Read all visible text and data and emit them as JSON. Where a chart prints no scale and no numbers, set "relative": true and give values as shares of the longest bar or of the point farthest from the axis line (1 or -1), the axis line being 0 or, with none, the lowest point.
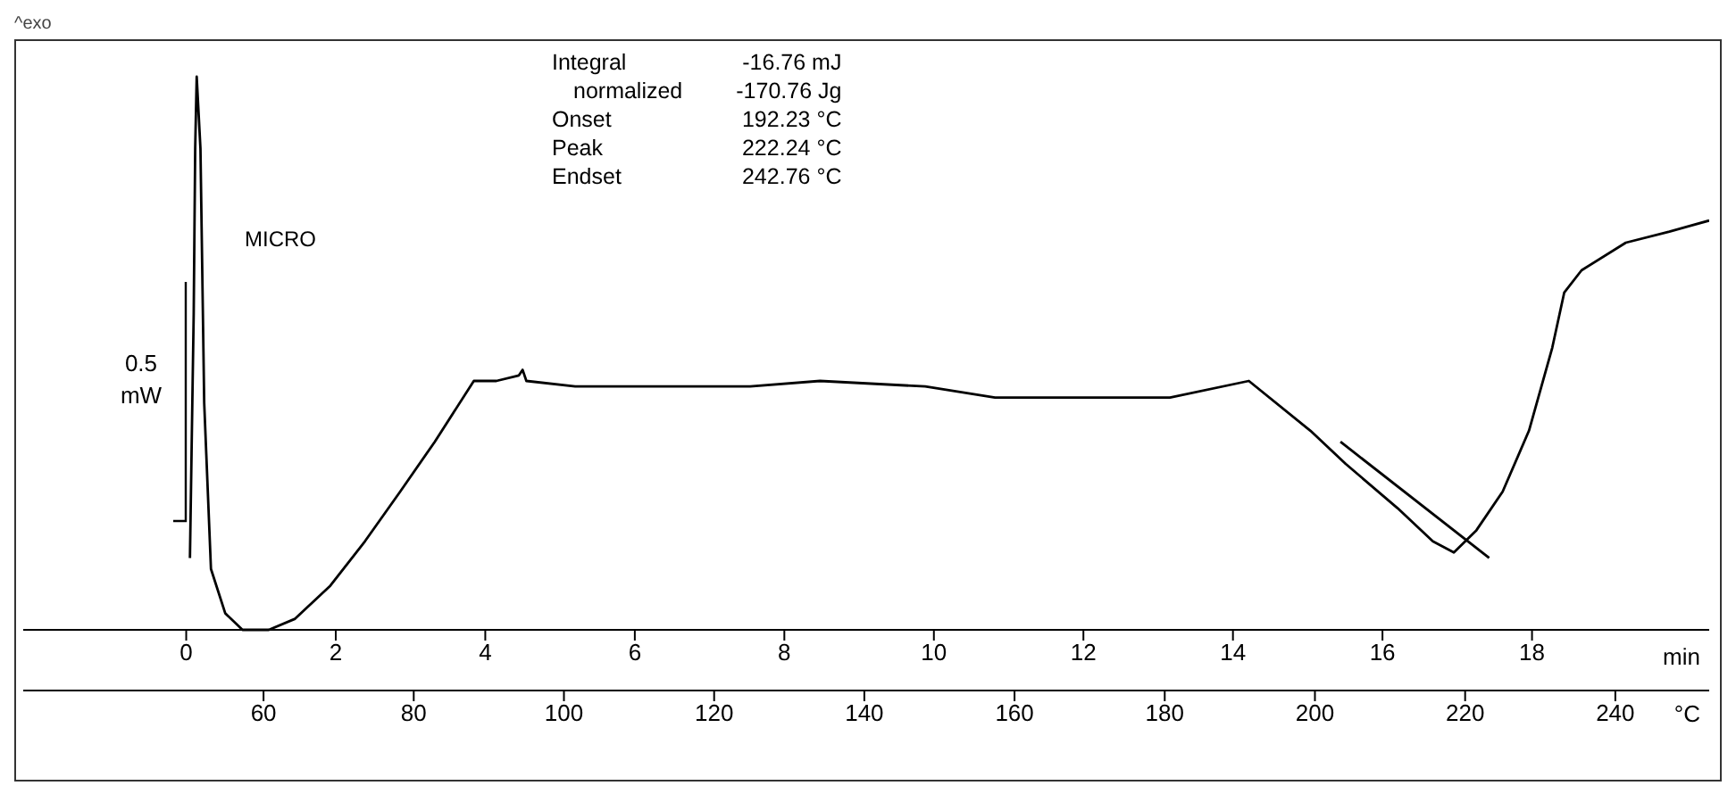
{
  "chart_data": {
    "type": "line",
    "relative": true,
    "xlabel": "°C",
    "x2label": "min",
    "xlim": [
      28,
      252.5
    ],
    "xticks": [
      60,
      80,
      100,
      120,
      140,
      160,
      180,
      200,
      220,
      240
    ],
    "x2lim": [
      -2.18,
      20.37
    ],
    "x2ticks": [
      0,
      2,
      4,
      6,
      8,
      10,
      12,
      14,
      16,
      18
    ],
    "marker": "none",
    "line_style": "solid",
    "series": [
      {
        "color": "#000000",
        "x": [
          50.2,
          50.7,
          50.9,
          51.1,
          51.6,
          52.1,
          53.0,
          54.9,
          57.2,
          60.7,
          64.2,
          68.9,
          73.5,
          78.2,
          82.8,
          88.0,
          91.0,
          94.0,
          94.5,
          95.0,
          101.5,
          110.8,
          124.8,
          134.1,
          148.1,
          157.4,
          166.8,
          180.7,
          191.2,
          199.4,
          204.1,
          211.0,
          215.7,
          218.5,
          221.5,
          225.0,
          228.5,
          231.6,
          233.2,
          235.5,
          241.4,
          247.2,
          252.5
        ],
        "values": [
          0.13,
          0.57,
          0.87,
          1.0,
          0.87,
          0.41,
          0.11,
          0.03,
          0.0,
          0.0,
          0.02,
          0.08,
          0.16,
          0.25,
          0.34,
          0.45,
          0.45,
          0.46,
          0.47,
          0.45,
          0.44,
          0.44,
          0.44,
          0.45,
          0.44,
          0.42,
          0.42,
          0.42,
          0.45,
          0.36,
          0.3,
          0.22,
          0.16,
          0.14,
          0.18,
          0.25,
          0.36,
          0.51,
          0.61,
          0.65,
          0.7,
          0.72,
          0.74
        ]
      },
      {
        "type": "line",
        "color": "#000000",
        "x": [
          203.4,
          223.2
        ],
        "values": [
          0.34,
          0.13
        ]
      }
    ],
    "annotations": [
      "^exo",
      "MICRO",
      "0.5 mW",
      "Integral -16.76 mJ",
      "normalized -170.76 Jg",
      "Onset 192.23 °C",
      "Peak 222.24 °C",
      "Endset 242.76 °C"
    ]
  }
}
